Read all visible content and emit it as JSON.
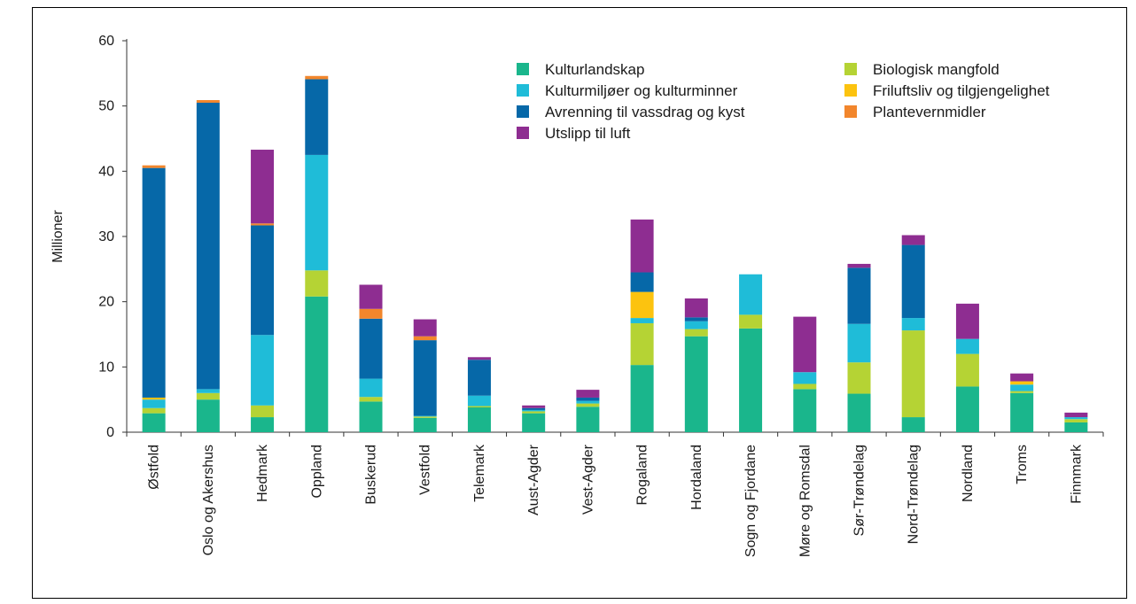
{
  "chart_data": {
    "type": "bar",
    "stacked": true,
    "title": "",
    "xlabel": "",
    "ylabel": "Millioner",
    "ylim": [
      0,
      60
    ],
    "yticks": [
      0,
      10,
      20,
      30,
      40,
      50,
      60
    ],
    "grid": false,
    "legend_position": "top-right",
    "categories": [
      "Østfold",
      "Oslo og Akershus",
      "Hedmark",
      "Oppland",
      "Buskerud",
      "Vestfold",
      "Telemark",
      "Aust-Agder",
      "Vest-Agder",
      "Rogaland",
      "Hordaland",
      "Sogn og Fjordane",
      "Møre og Romsdal",
      "Sør-Trøndelag",
      "Nord-Trøndelag",
      "Nordland",
      "Troms",
      "Finnmark"
    ],
    "series": [
      {
        "name": "Kulturlandskap",
        "color": "#1ab68c",
        "values": [
          2.9,
          5.0,
          2.3,
          20.8,
          4.7,
          2.2,
          3.8,
          2.9,
          3.9,
          10.3,
          14.7,
          15.9,
          6.6,
          5.9,
          2.3,
          7.0,
          6.0,
          1.5
        ]
      },
      {
        "name": "Biologisk mangfold",
        "color": "#b5d334",
        "values": [
          0.8,
          1.0,
          1.8,
          4.0,
          0.7,
          0.2,
          0.2,
          0.3,
          0.5,
          6.4,
          1.1,
          2.1,
          0.8,
          4.8,
          13.3,
          5.0,
          0.3,
          0.5
        ]
      },
      {
        "name": "Kulturmiljøer og kulturminner",
        "color": "#1fbcd8",
        "values": [
          1.3,
          0.6,
          10.8,
          17.7,
          2.8,
          0.1,
          1.6,
          0.2,
          0.4,
          0.8,
          1.2,
          6.2,
          1.8,
          5.9,
          1.9,
          2.3,
          1.0,
          0.3
        ]
      },
      {
        "name": "Friluftsliv og tilgjengelighet",
        "color": "#fcc30f",
        "values": [
          0.3,
          0.0,
          0.0,
          0.0,
          0.0,
          0.0,
          0.0,
          0.0,
          0.0,
          4.0,
          0.0,
          0.0,
          0.0,
          0.0,
          0.0,
          0.0,
          0.5,
          0.0
        ]
      },
      {
        "name": "Avrenning til vassdrag og kyst",
        "color": "#0668a8",
        "values": [
          35.2,
          43.9,
          16.8,
          11.6,
          9.2,
          11.6,
          5.5,
          0.3,
          0.5,
          3.0,
          0.6,
          0.0,
          0.0,
          8.6,
          11.2,
          0.0,
          0.0,
          0.0
        ]
      },
      {
        "name": "Plantevernmidler",
        "color": "#f2862c",
        "values": [
          0.4,
          0.4,
          0.3,
          0.5,
          1.5,
          0.6,
          0.0,
          0.0,
          0.0,
          0.0,
          0.0,
          0.0,
          0.0,
          0.0,
          0.0,
          0.0,
          0.0,
          0.0
        ]
      },
      {
        "name": "Utslipp til luft",
        "color": "#8e2d91",
        "values": [
          0.0,
          0.0,
          11.3,
          0.0,
          3.7,
          2.6,
          0.4,
          0.4,
          1.2,
          8.1,
          2.9,
          0.0,
          8.5,
          0.6,
          1.5,
          5.4,
          1.2,
          0.7
        ]
      }
    ]
  },
  "legend_columns": [
    [
      "Kulturlandskap",
      "Kulturmiljøer og kulturminner",
      "Avrenning til vassdrag og kyst",
      "Utslipp til luft"
    ],
    [
      "Biologisk mangfold",
      "Friluftsliv og tilgjengelighet",
      "Plantevernmidler"
    ]
  ]
}
